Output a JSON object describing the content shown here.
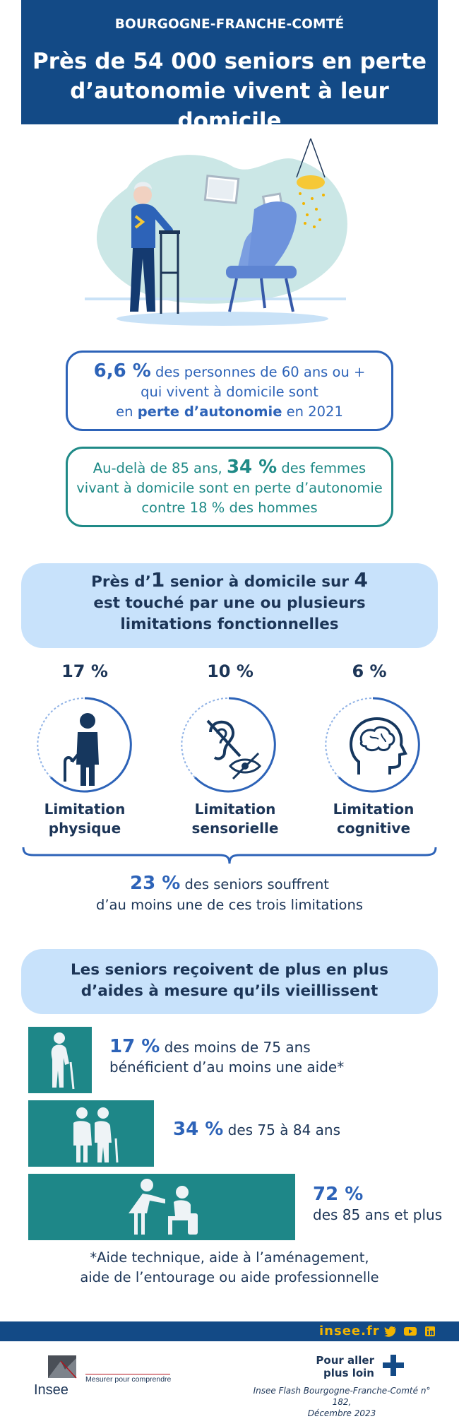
{
  "header": {
    "region": "BOURGOGNE-FRANCHE-COMTÉ",
    "title_line1": "Près de 54 000 seniors en perte",
    "title_line2": "d’autonomie vivent à leur domicile"
  },
  "stat1": {
    "pct": "6,6 %",
    "text_a": " des personnes de 60 ans ou +",
    "text_b": "qui vivent à domicile sont",
    "text_c": "en ",
    "text_bold": "perte d’autonomie",
    "text_d": " en 2021"
  },
  "stat2": {
    "text_a": "Au-delà de 85 ans, ",
    "pct": "34 %",
    "text_b": " des femmes",
    "text_c": "vivant à domicile sont en perte d’autonomie",
    "text_d": "contre 18 % des hommes"
  },
  "limitations_heading": {
    "a": "Près d’",
    "n1": "1",
    "b": " senior à domicile sur ",
    "n2": "4",
    "line2": "est touché par une ou plusieurs",
    "line3": "limitations fonctionnelles"
  },
  "limitations": [
    {
      "pct": "17 %",
      "label_line1": "Limitation",
      "label_line2": "physique",
      "icon": "person-with-cane-icon"
    },
    {
      "pct": "10 %",
      "label_line1": "Limitation",
      "label_line2": "sensorielle",
      "icon": "hearing-vision-impaired-icon"
    },
    {
      "pct": "6 %",
      "label_line1": "Limitation",
      "label_line2": "cognitive",
      "icon": "head-brain-icon"
    }
  ],
  "summary": {
    "pct": "23 %",
    "text_a": " des seniors souffrent",
    "text_b": "d’au moins une de ces trois limitations"
  },
  "aides_heading": {
    "line1": "Les seniors reçoivent de plus en plus",
    "line2": "d’aides à mesure qu’ils vieillissent"
  },
  "aides": [
    {
      "pct": "17 %",
      "text_a": " des moins de 75 ans",
      "text_b": "bénéficient d’au moins une aide*",
      "value": 17
    },
    {
      "pct": "34 %",
      "text_a": "  des 75 à 84 ans",
      "value": 34
    },
    {
      "pct": "72 %",
      "text_a": "des 85 ans et plus",
      "value": 72
    }
  ],
  "footnote": {
    "line1": "*Aide technique, aide à l’aménagement,",
    "line2": "aide de l’entourage ou aide professionnelle"
  },
  "footer": {
    "site": "insee.fr",
    "logo_text": "Insee",
    "tagline": "Mesurer pour comprendre",
    "more_line1": "Pour aller",
    "more_line2": "plus loin",
    "ref_line1": "Insee Flash Bourgogne-Franche-Comté n° 182,",
    "ref_line2": "Décembre 2023"
  },
  "colors": {
    "navy": "#134a86",
    "blue": "#2d63b8",
    "teal": "#1e8788",
    "pill": "#c8e2fb",
    "gold": "#f2b400"
  }
}
